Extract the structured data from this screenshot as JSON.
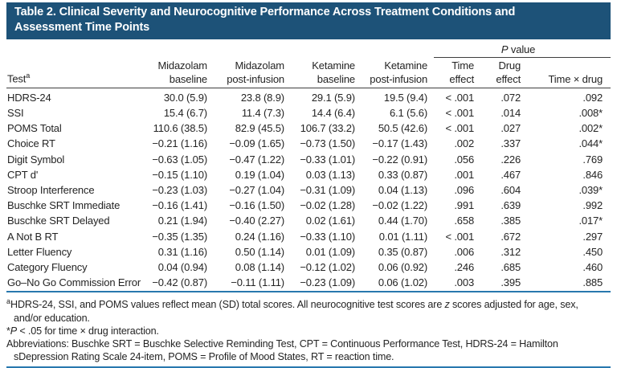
{
  "colors": {
    "title_bar_bg": "#1d5278",
    "title_text": "#ffffff",
    "rule_blue": "#2878ae",
    "rule_dark": "#3f3f3f",
    "text": "#242424"
  },
  "table": {
    "title": "Table 2. Clinical Severity and Neurocognitive Performance Across Treatment Conditions and Assessment Time Points",
    "columns": {
      "test_label": "Test",
      "test_sup": "a",
      "groups": [
        {
          "line1": "Midazolam",
          "line2": "baseline"
        },
        {
          "line1": "Midazolam",
          "line2": "post-infusion"
        },
        {
          "line1": "Ketamine",
          "line2": "baseline"
        },
        {
          "line1": "Ketamine",
          "line2": "post-infusion"
        }
      ],
      "p_header": {
        "italic": "P",
        "rest": " value"
      },
      "p_cols": [
        {
          "line1": "Time",
          "line2": "effect"
        },
        {
          "line1": "Drug",
          "line2": "effect"
        },
        {
          "line1": "Time × drug",
          "line2": ""
        }
      ]
    },
    "rows": [
      {
        "test": "HDRS-24",
        "values": [
          "30.0 (5.9)",
          "23.8 (8.9)",
          "29.1 (5.9)",
          "19.5 (9.4)"
        ],
        "p": [
          "< .001",
          ".072",
          ".092"
        ]
      },
      {
        "test": "SSI",
        "values": [
          "15.4 (6.7)",
          "11.4 (7.3)",
          "14.4 (6.4)",
          "6.1 (5.6)"
        ],
        "p": [
          "< .001",
          ".014",
          ".008*"
        ]
      },
      {
        "test": "POMS Total",
        "values": [
          "110.6 (38.5)",
          "82.9 (45.5)",
          "106.7 (33.2)",
          "50.5 (42.6)"
        ],
        "p": [
          "< .001",
          ".027",
          ".002*"
        ]
      },
      {
        "test": "Choice RT",
        "values": [
          "−0.21 (1.16)",
          "−0.09 (1.65)",
          "−0.73 (1.50)",
          "−0.17 (1.43)"
        ],
        "p": [
          ".002",
          ".337",
          ".044*"
        ]
      },
      {
        "test": "Digit Symbol",
        "values": [
          "−0.63 (1.05)",
          "−0.47 (1.22)",
          "−0.33 (1.01)",
          "−0.22 (0.91)"
        ],
        "p": [
          ".056",
          ".226",
          ".769"
        ]
      },
      {
        "test": "CPT d'",
        "values": [
          "−0.15 (1.10)",
          "0.19 (1.04)",
          "0.03 (1.13)",
          "0.33 (0.87)"
        ],
        "p": [
          ".001",
          ".467",
          ".846"
        ]
      },
      {
        "test": "Stroop Interference",
        "values": [
          "−0.23 (1.03)",
          "−0.27 (1.04)",
          "−0.31 (1.09)",
          "0.04 (1.13)"
        ],
        "p": [
          ".096",
          ".604",
          ".039*"
        ]
      },
      {
        "test": "Buschke SRT Immediate",
        "values": [
          "−0.16 (1.41)",
          "−0.16 (1.50)",
          "−0.02 (1.28)",
          "−0.02 (1.22)"
        ],
        "p": [
          ".991",
          ".639",
          ".992"
        ]
      },
      {
        "test": "Buschke SRT Delayed",
        "values": [
          "0.21 (1.94)",
          "−0.40 (2.27)",
          "0.02 (1.61)",
          "0.44 (1.70)"
        ],
        "p": [
          ".658",
          ".385",
          ".017*"
        ]
      },
      {
        "test": "A Not B RT",
        "values": [
          "−0.35 (1.35)",
          "0.24 (1.16)",
          "−0.33 (1.10)",
          "0.01 (1.11)"
        ],
        "p": [
          "< .001",
          ".672",
          ".297"
        ]
      },
      {
        "test": "Letter Fluency",
        "values": [
          "0.31 (1.16)",
          "0.50 (1.14)",
          "0.01 (1.09)",
          "0.35 (0.87)"
        ],
        "p": [
          ".006",
          ".312",
          ".450"
        ]
      },
      {
        "test": "Category Fluency",
        "values": [
          "0.04 (0.94)",
          "0.08 (1.14)",
          "−0.12 (1.02)",
          "0.06 (0.92)"
        ],
        "p": [
          ".246",
          ".685",
          ".460"
        ]
      },
      {
        "test": "Go–No Go Commission Error",
        "values": [
          "−0.42 (0.87)",
          "−0.11 (1.11)",
          "−0.23 (1.09)",
          "0.06 (1.02)"
        ],
        "p": [
          ".003",
          ".395",
          ".885"
        ]
      }
    ],
    "footnotes": {
      "note_a": {
        "marker": "a",
        "text_before_z": "HDRS-24, SSI, and POMS values reflect mean (SD) total scores. All neurocognitive test scores are ",
        "italic": "z",
        "text_after_z": " scores adjusted for age, sex, and/or education."
      },
      "note_star": {
        "prefix": "*",
        "italic": "P",
        "text": " < .05 for time × drug interaction."
      },
      "abbreviations": {
        "text": "Abbreviations: Buschke SRT = Buschke Selective Reminding Test, CPT = Continuous Performance Test, HDRS-24 = Hamilton sDepression Rating Scale 24-item, POMS = Profile of Mood States, RT = reaction time."
      }
    }
  }
}
